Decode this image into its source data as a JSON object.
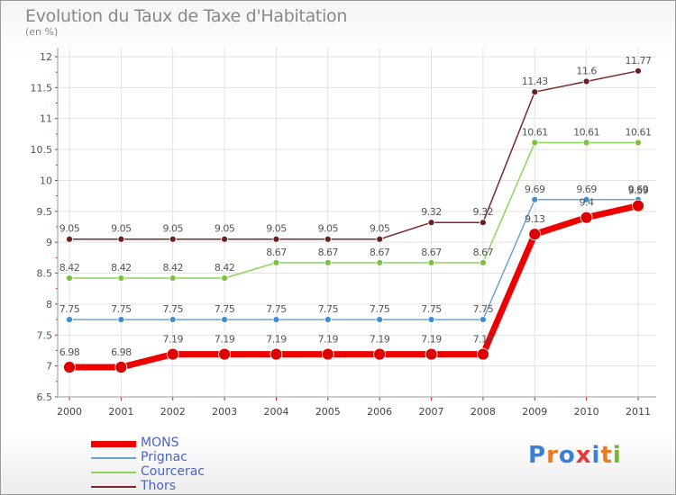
{
  "title": "Evolution du Taux de Taxe d'Habitation",
  "subtitle": "(en %)",
  "logo": {
    "letters": [
      "P",
      "r",
      "o",
      "x",
      "i",
      "t",
      "i"
    ],
    "colors": [
      "#3b7fd6",
      "#e87c1e",
      "#3b7fd6",
      "#e83a3a",
      "#3b7fd6",
      "#e87c1e",
      "#7ab33d"
    ]
  },
  "chart_data": {
    "type": "line",
    "categories": [
      "2000",
      "2001",
      "2002",
      "2003",
      "2004",
      "2005",
      "2006",
      "2007",
      "2008",
      "2009",
      "2010",
      "2011"
    ],
    "ylim": [
      6.5,
      12
    ],
    "yticks": [
      6.5,
      7,
      7.5,
      8,
      8.5,
      9,
      9.5,
      10,
      10.5,
      11,
      11.5,
      12
    ],
    "ytick_labels": [
      "6.5",
      "7",
      "7.5",
      "8",
      "8.5",
      "9",
      "9.5",
      "10",
      "10.5",
      "11",
      "11.5",
      "12"
    ],
    "grid": true,
    "series": [
      {
        "name": "Thors",
        "color": "#7a2a2a",
        "dot": "#6b1f1f",
        "width": 1.5,
        "dot_r": 3.5,
        "label_offset": -8,
        "values": [
          9.05,
          9.05,
          9.05,
          9.05,
          9.05,
          9.05,
          9.05,
          9.32,
          9.32,
          11.43,
          11.6,
          11.77
        ],
        "labels": [
          "9.05",
          "9.05",
          "9.05",
          "9.05",
          "9.05",
          "9.05",
          "9.05",
          "9.32",
          "9.32",
          "11.43",
          "11.6",
          "11.77"
        ]
      },
      {
        "name": "Courcerac",
        "color": "#8ed45a",
        "dot": "#7cc23e",
        "width": 1.5,
        "dot_r": 3.5,
        "label_offset": -8,
        "values": [
          8.42,
          8.42,
          8.42,
          8.42,
          8.67,
          8.67,
          8.67,
          8.67,
          8.67,
          10.61,
          10.61,
          10.61
        ],
        "labels": [
          "8.42",
          "8.42",
          "8.42",
          "8.42",
          "8.67",
          "8.67",
          "8.67",
          "8.67",
          "8.67",
          "10.61",
          "10.61",
          "10.61"
        ]
      },
      {
        "name": "Prignac",
        "color": "#6fa3cf",
        "dot": "#3b8fd0",
        "width": 1.5,
        "dot_r": 3.5,
        "label_offset": -8,
        "values": [
          7.75,
          7.75,
          7.75,
          7.75,
          7.75,
          7.75,
          7.75,
          7.75,
          7.75,
          9.69,
          9.69,
          9.69
        ],
        "labels": [
          "7.75",
          "7.75",
          "7.75",
          "7.75",
          "7.75",
          "7.75",
          "7.75",
          "7.75",
          "7.75",
          "9.69",
          "9.69",
          "9.69"
        ]
      },
      {
        "name": "MONS",
        "color": "#ee0000",
        "dot": "#dd0000",
        "width": 7,
        "dot_r": 6.5,
        "label_offset": -13,
        "values": [
          6.98,
          6.98,
          7.19,
          7.19,
          7.19,
          7.19,
          7.19,
          7.19,
          7.19,
          9.13,
          9.4,
          9.59
        ],
        "labels": [
          "6.98",
          "6.98",
          "7.19",
          "7.19",
          "7.19",
          "7.19",
          "7.19",
          "7.19",
          "7.19",
          "9.13",
          "9.4",
          "9.59"
        ]
      }
    ],
    "legend": [
      {
        "name": "MONS",
        "color": "#ee0000",
        "thickness": 7
      },
      {
        "name": "Prignac",
        "color": "#6fa3cf",
        "thickness": 2
      },
      {
        "name": "Courcerac",
        "color": "#8ed45a",
        "thickness": 2
      },
      {
        "name": "Thors",
        "color": "#7a2a2a",
        "thickness": 2
      }
    ]
  }
}
